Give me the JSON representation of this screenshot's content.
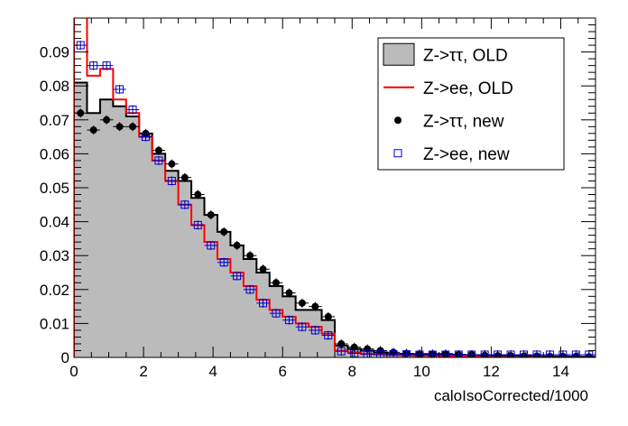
{
  "chart_data": {
    "type": "histogram",
    "xlabel": "caloIsoCorrected/1000",
    "ylabel": "",
    "xlim": [
      0,
      15
    ],
    "ylim": [
      0,
      0.1
    ],
    "bin_width": 0.375,
    "x_ticks": [
      "0",
      "2",
      "4",
      "6",
      "8",
      "10",
      "12",
      "14"
    ],
    "y_ticks": [
      "0",
      "0.01",
      "0.02",
      "0.03",
      "0.04",
      "0.05",
      "0.06",
      "0.07",
      "0.08",
      "0.09"
    ],
    "legend_position": "top-right",
    "series": [
      {
        "name": "Z->ττ, OLD",
        "style": "filled-histogram",
        "fill": "#bbbbbb",
        "line": "#000000",
        "values": [
          0.081,
          0.072,
          0.076,
          0.074,
          0.071,
          0.066,
          0.06,
          0.055,
          0.052,
          0.047,
          0.042,
          0.037,
          0.033,
          0.029,
          0.025,
          0.021,
          0.018,
          0.014,
          0.014,
          0.011,
          0.0035,
          0.0025,
          0.002,
          0.0015,
          0.001,
          0.001,
          0.001,
          0.001,
          0.001,
          0.0008,
          0.0006,
          0.0005,
          0.0005,
          0.0004,
          0.0004,
          0.0003,
          0.0003,
          0.0003,
          0.0002,
          0.0002
        ]
      },
      {
        "name": "Z->ee, OLD",
        "style": "line-histogram",
        "line": "#ff0000",
        "values": [
          0.105,
          0.083,
          0.085,
          0.076,
          0.072,
          0.065,
          0.058,
          0.052,
          0.045,
          0.039,
          0.034,
          0.029,
          0.025,
          0.021,
          0.017,
          0.014,
          0.012,
          0.01,
          0.009,
          0.007,
          0.002,
          0.0015,
          0.001,
          0.0008,
          0.0007,
          0.0006,
          0.0005,
          0.0005,
          0.0004,
          0.0004,
          0.0003,
          0.0003,
          0.0003,
          0.0003,
          0.0002,
          0.0002,
          0.0002,
          0.0002,
          0.0002,
          0.0002
        ]
      },
      {
        "name": "Z->ττ, new",
        "style": "points",
        "marker": "filled-circle",
        "color": "#000000",
        "values": [
          0.072,
          0.067,
          0.07,
          0.068,
          0.068,
          0.066,
          0.061,
          0.057,
          0.053,
          0.048,
          0.042,
          0.037,
          0.033,
          0.03,
          0.026,
          0.022,
          0.019,
          0.016,
          0.015,
          0.012,
          0.004,
          0.003,
          0.0025,
          0.002,
          0.0015,
          0.0012,
          0.001,
          0.001,
          0.001,
          0.0008,
          0.0008,
          0.0006,
          0.0005,
          0.0005,
          0.0004,
          0.0004,
          0.0003,
          0.0003,
          0.0003,
          0.0002
        ]
      },
      {
        "name": "Z->ee, new",
        "style": "points",
        "marker": "open-square",
        "color": "#0000cc",
        "values": [
          0.092,
          0.086,
          0.086,
          0.079,
          0.073,
          0.065,
          0.058,
          0.052,
          0.045,
          0.039,
          0.033,
          0.028,
          0.024,
          0.02,
          0.016,
          0.013,
          0.011,
          0.009,
          0.008,
          0.0065,
          0.0018,
          0.0012,
          0.001,
          0.001,
          0.0009,
          0.0009,
          0.0008,
          0.0008,
          0.0008,
          0.0008,
          0.0008,
          0.0008,
          0.0008,
          0.0008,
          0.0008,
          0.0008,
          0.0008,
          0.0008,
          0.0008,
          0.0008
        ]
      }
    ]
  }
}
